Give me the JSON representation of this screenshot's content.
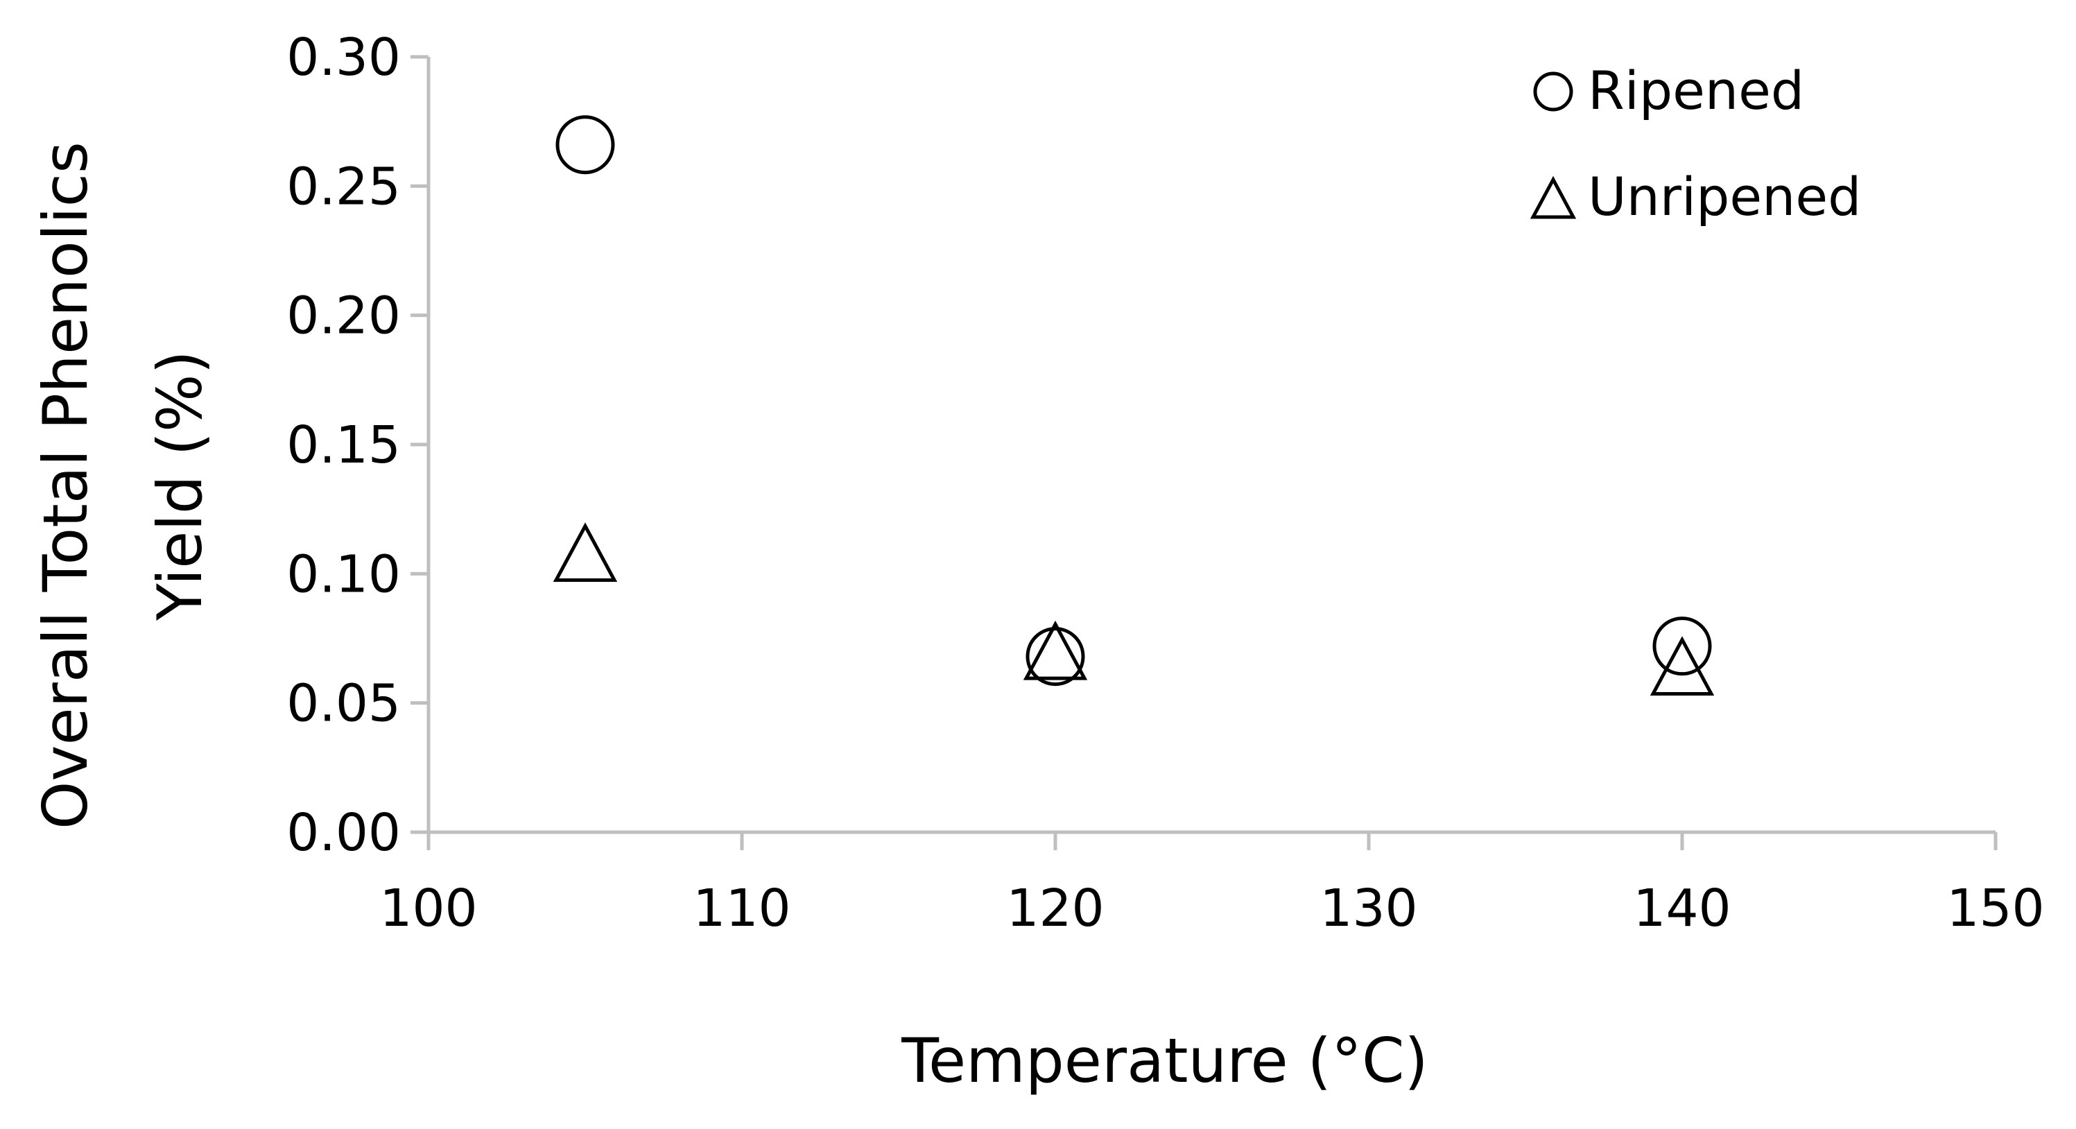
{
  "chart_data": {
    "type": "scatter",
    "title": "",
    "xlabel": "Temperature (°C)",
    "ylabel_lines": [
      "Overall Total Phenolics",
      "Yield (%)"
    ],
    "xlim": [
      100,
      150
    ],
    "ylim": [
      0,
      0.3
    ],
    "x_ticks": [
      "100",
      "110",
      "120",
      "130",
      "140",
      "150"
    ],
    "y_ticks": [
      "0.00",
      "0.05",
      "0.10",
      "0.15",
      "0.20",
      "0.25",
      "0.30"
    ],
    "grid": false,
    "legend_position": "top-right",
    "series": [
      {
        "name": "Ripened",
        "marker": "circle",
        "x": [
          105,
          120,
          140
        ],
        "y": [
          0.266,
          0.068,
          0.072
        ]
      },
      {
        "name": "Unripened",
        "marker": "triangle",
        "x": [
          105,
          120,
          140
        ],
        "y": [
          0.108,
          0.07,
          0.064
        ]
      }
    ]
  },
  "colors": {
    "axis": "#bfbfbf",
    "marker_stroke": "#000000",
    "marker_fill": "none"
  }
}
